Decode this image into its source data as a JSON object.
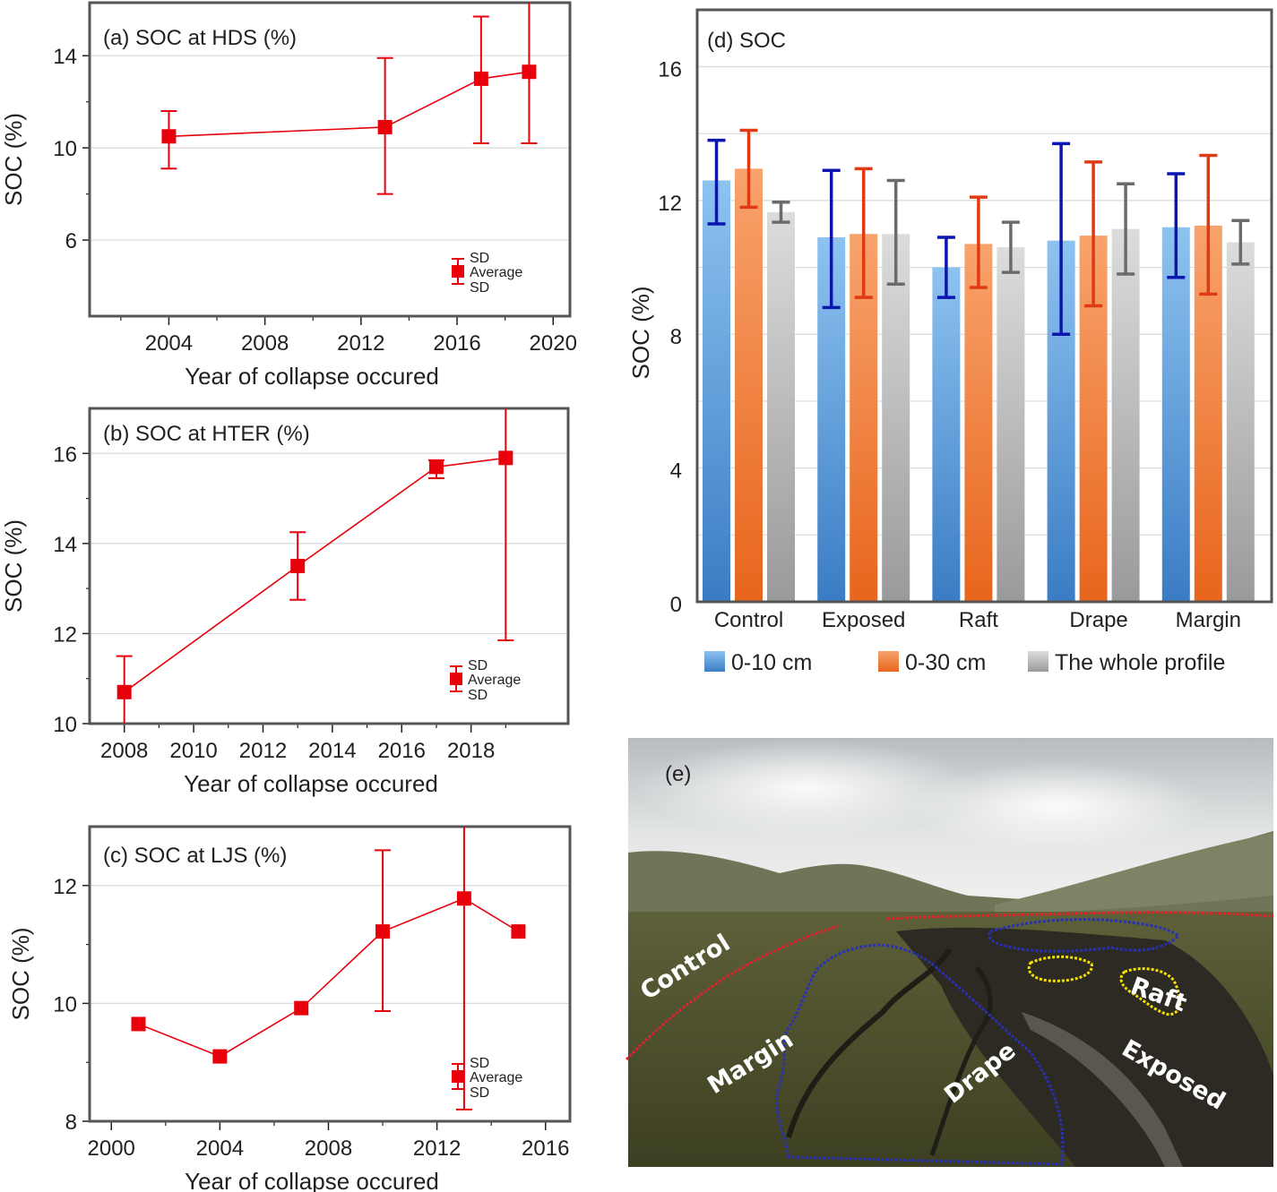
{
  "colors": {
    "red": "#e8000b",
    "blue_dark": "#0b15b0",
    "blue_bar": "#4a8fd4",
    "orange_dark": "#e03a12",
    "orange_bar": "#ef7d3a",
    "gray_dark": "#6b6b6b",
    "gray_bar": "#b5b5b5",
    "frame": "#555555",
    "grid": "#d9d9d9"
  },
  "chart_data": [
    {
      "id": "a",
      "type": "scatter",
      "title": "(a) SOC at HDS (%)",
      "xlabel": "Year of collapse occured",
      "ylabel": "SOC (%)",
      "xlim": [
        2000.7,
        2020.7
      ],
      "ylim": [
        2.7,
        16.3
      ],
      "xticks": [
        2004,
        2008,
        2012,
        2016,
        2020
      ],
      "yticks": [
        6,
        10,
        14
      ],
      "grid": true,
      "legend_position": "bottom-right",
      "legend": [
        "SD",
        "Average",
        "SD"
      ],
      "points": [
        {
          "x": 2004,
          "y": 10.5,
          "lo": 9.1,
          "hi": 11.6
        },
        {
          "x": 2013,
          "y": 10.9,
          "lo": 8.0,
          "hi": 13.9
        },
        {
          "x": 2017,
          "y": 13.0,
          "lo": 10.2,
          "hi": 15.7
        },
        {
          "x": 2019,
          "y": 13.3,
          "lo": 10.2,
          "hi": 16.3
        }
      ]
    },
    {
      "id": "b",
      "type": "scatter",
      "title": "(b) SOC at HTER (%)",
      "xlabel": "Year of collapse occured",
      "ylabel": "SOC (%)",
      "xlim": [
        2007.0,
        2020.8
      ],
      "ylim": [
        10.0,
        17.0
      ],
      "xticks": [
        2008,
        2010,
        2012,
        2014,
        2016,
        2018
      ],
      "yticks": [
        10,
        12,
        14,
        16
      ],
      "grid": true,
      "legend_position": "bottom-right",
      "legend": [
        "SD",
        "Average",
        "SD"
      ],
      "points": [
        {
          "x": 2008,
          "y": 10.7,
          "lo": 10.0,
          "hi": 11.5
        },
        {
          "x": 2013,
          "y": 13.5,
          "lo": 12.75,
          "hi": 14.25
        },
        {
          "x": 2017,
          "y": 15.7,
          "lo": 15.45,
          "hi": 15.85
        },
        {
          "x": 2019,
          "y": 15.9,
          "lo": 11.85,
          "hi": 17.0
        }
      ]
    },
    {
      "id": "c",
      "type": "scatter",
      "title": "(c) SOC at LJS (%)",
      "xlabel": "Year of collapse occured",
      "ylabel": "SOC (%)",
      "xlim": [
        1999.2,
        2016.9
      ],
      "ylim": [
        8.0,
        13.0
      ],
      "xticks": [
        2000,
        2004,
        2008,
        2012,
        2016
      ],
      "yticks": [
        8,
        10,
        12
      ],
      "grid": true,
      "legend_position": "bottom-right",
      "legend": [
        "SD",
        "Average",
        "SD"
      ],
      "points": [
        {
          "x": 2001,
          "y": 9.65
        },
        {
          "x": 2004,
          "y": 9.1
        },
        {
          "x": 2007,
          "y": 9.92
        },
        {
          "x": 2010,
          "y": 11.22,
          "lo": 9.87,
          "hi": 12.6
        },
        {
          "x": 2013,
          "y": 11.78,
          "lo": 8.2,
          "hi": 13.0
        },
        {
          "x": 2015,
          "y": 11.22
        }
      ]
    },
    {
      "id": "d",
      "type": "bar",
      "title": "(d) SOC",
      "ylabel": "SOC (%)",
      "ylim": [
        0,
        17.7
      ],
      "yticks": [
        0,
        4,
        8,
        12,
        16
      ],
      "grid": true,
      "legend_position": "bottom",
      "categories": [
        "Control",
        "Exposed",
        "Raft",
        "Drape",
        "Margin"
      ],
      "series": [
        {
          "name": "0-10 cm",
          "values": [
            12.6,
            10.9,
            10.0,
            10.8,
            11.2
          ],
          "lo": [
            11.3,
            8.8,
            9.1,
            8.0,
            9.7
          ],
          "hi": [
            13.8,
            12.9,
            10.9,
            13.7,
            12.8
          ]
        },
        {
          "name": "0-30 cm",
          "values": [
            12.95,
            11.0,
            10.7,
            10.95,
            11.25
          ],
          "lo": [
            11.8,
            9.1,
            9.4,
            8.85,
            9.2
          ],
          "hi": [
            14.1,
            12.95,
            12.1,
            13.15,
            13.35
          ]
        },
        {
          "name": "The whole profile",
          "values": [
            11.65,
            11.0,
            10.6,
            11.15,
            10.75
          ],
          "lo": [
            11.35,
            9.5,
            9.85,
            9.8,
            10.1
          ],
          "hi": [
            11.95,
            12.6,
            11.35,
            12.5,
            11.4
          ]
        }
      ]
    }
  ],
  "photo": {
    "label": "(e)",
    "annotations": [
      "Control",
      "Margin",
      "Drape",
      "Raft",
      "Exposed"
    ]
  }
}
